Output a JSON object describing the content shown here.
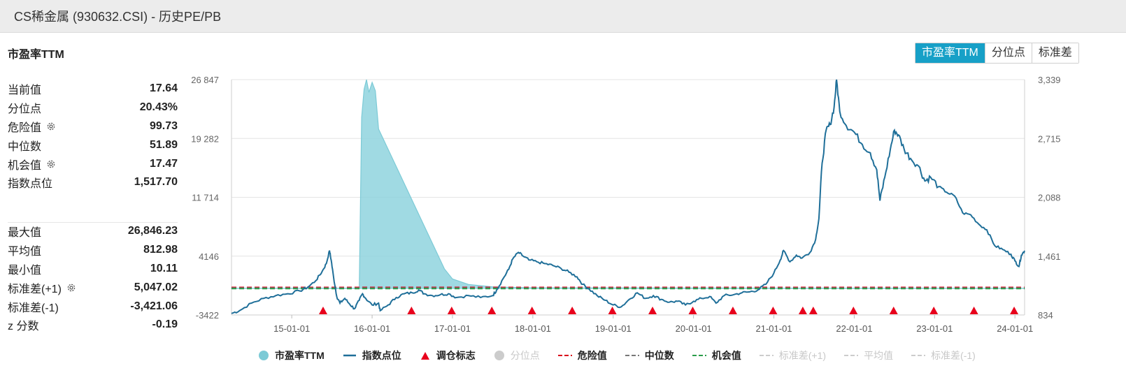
{
  "window": {
    "title": "CS稀金属 (930632.CSI) - 历史PE/PB"
  },
  "chart_heading": "市盈率TTM",
  "tabs": [
    {
      "label": "市盈率TTM",
      "active": true
    },
    {
      "label": "分位点",
      "active": false
    },
    {
      "label": "标准差",
      "active": false
    }
  ],
  "stats_top": [
    {
      "label": "当前值",
      "value": "17.64",
      "gear": false
    },
    {
      "label": "分位点",
      "value": "20.43%",
      "gear": false
    },
    {
      "label": "危险值",
      "value": "99.73",
      "gear": true
    },
    {
      "label": "中位数",
      "value": "51.89",
      "gear": false
    },
    {
      "label": "机会值",
      "value": "17.47",
      "gear": true
    },
    {
      "label": "指数点位",
      "value": "1,517.70",
      "gear": false
    }
  ],
  "stats_bottom": [
    {
      "label": "最大值",
      "value": "26,846.23",
      "gear": false
    },
    {
      "label": "平均值",
      "value": "812.98",
      "gear": false
    },
    {
      "label": "最小值",
      "value": "10.11",
      "gear": false
    },
    {
      "label": "标准差(+1)",
      "value": "5,047.02",
      "gear": true
    },
    {
      "label": "标准差(-1)",
      "value": "-3,421.06",
      "gear": false
    },
    {
      "label": "z 分数",
      "value": "-0.19",
      "gear": false
    }
  ],
  "colors": {
    "pe_fill": "#8fd3de",
    "pe_stroke": "#7ccad6",
    "index_line": "#1f6f99",
    "marker": "#e8001c",
    "danger": "#d9001b",
    "median": "#777777",
    "opportunity": "#2a9d4a",
    "disabled": "#cccccc",
    "tab_active": "#17a0c7"
  },
  "chart_data": {
    "type": "line",
    "x_ticks": [
      "15-01-01",
      "16-01-01",
      "17-01-01",
      "18-01-01",
      "19-01-01",
      "20-01-01",
      "21-01-01",
      "22-01-01",
      "23-01-01",
      "24-01-01"
    ],
    "x_range": [
      2014.25,
      2024.12
    ],
    "y_left_ticks": [
      "26 847",
      "19 282",
      "11 714",
      "4146",
      "-3422"
    ],
    "y_left_range": [
      -3422,
      26847
    ],
    "y_right_ticks": [
      "3,339",
      "2,715",
      "2,088",
      "1,461",
      "834"
    ],
    "y_right_range": [
      834,
      3339
    ],
    "opportunity_value": 17.47,
    "median_value": 51.89,
    "danger_value": 99.73,
    "pe_series": {
      "name": "市盈率TTM",
      "points": [
        [
          2014.25,
          20
        ],
        [
          2015.5,
          25
        ],
        [
          2015.84,
          30
        ],
        [
          2015.87,
          22000
        ],
        [
          2015.9,
          25600
        ],
        [
          2015.93,
          26847
        ],
        [
          2015.96,
          25200
        ],
        [
          2016.0,
          26500
        ],
        [
          2016.04,
          25400
        ],
        [
          2016.08,
          20500
        ],
        [
          2016.9,
          2500
        ],
        [
          2017.0,
          1200
        ],
        [
          2017.2,
          500
        ],
        [
          2017.5,
          200
        ],
        [
          2018.0,
          60
        ],
        [
          2020.0,
          40
        ],
        [
          2024.12,
          17.64
        ]
      ]
    },
    "index_series": {
      "name": "指数点位",
      "points": [
        [
          2014.25,
          850
        ],
        [
          2014.35,
          880
        ],
        [
          2014.5,
          960
        ],
        [
          2014.65,
          1010
        ],
        [
          2014.8,
          1040
        ],
        [
          2014.95,
          1060
        ],
        [
          2015.1,
          1090
        ],
        [
          2015.2,
          1130
        ],
        [
          2015.3,
          1200
        ],
        [
          2015.38,
          1300
        ],
        [
          2015.43,
          1380
        ],
        [
          2015.47,
          1520
        ],
        [
          2015.49,
          1420
        ],
        [
          2015.52,
          1240
        ],
        [
          2015.56,
          1030
        ],
        [
          2015.6,
          960
        ],
        [
          2015.66,
          1010
        ],
        [
          2015.72,
          950
        ],
        [
          2015.78,
          900
        ],
        [
          2015.84,
          990
        ],
        [
          2015.88,
          1060
        ],
        [
          2015.92,
          1010
        ],
        [
          2016.0,
          940
        ],
        [
          2016.08,
          960
        ],
        [
          2016.1,
          880
        ],
        [
          2016.2,
          940
        ],
        [
          2016.3,
          1020
        ],
        [
          2016.4,
          1060
        ],
        [
          2016.5,
          1070
        ],
        [
          2016.58,
          1100
        ],
        [
          2016.65,
          1060
        ],
        [
          2016.75,
          1040
        ],
        [
          2016.85,
          1050
        ],
        [
          2016.95,
          1060
        ],
        [
          2017.05,
          1020
        ],
        [
          2017.2,
          1040
        ],
        [
          2017.35,
          1020
        ],
        [
          2017.5,
          1040
        ],
        [
          2017.55,
          1100
        ],
        [
          2017.63,
          1220
        ],
        [
          2017.7,
          1320
        ],
        [
          2017.75,
          1430
        ],
        [
          2017.82,
          1500
        ],
        [
          2017.88,
          1460
        ],
        [
          2017.95,
          1420
        ],
        [
          2018.05,
          1400
        ],
        [
          2018.15,
          1380
        ],
        [
          2018.25,
          1360
        ],
        [
          2018.35,
          1330
        ],
        [
          2018.45,
          1290
        ],
        [
          2018.55,
          1240
        ],
        [
          2018.62,
          1160
        ],
        [
          2018.7,
          1110
        ],
        [
          2018.8,
          1040
        ],
        [
          2018.9,
          990
        ],
        [
          2019.0,
          940
        ],
        [
          2019.1,
          920
        ],
        [
          2019.2,
          1000
        ],
        [
          2019.3,
          1070
        ],
        [
          2019.4,
          1010
        ],
        [
          2019.5,
          1040
        ],
        [
          2019.6,
          1000
        ],
        [
          2019.7,
          970
        ],
        [
          2019.8,
          980
        ],
        [
          2019.9,
          940
        ],
        [
          2020.0,
          980
        ],
        [
          2020.1,
          1010
        ],
        [
          2020.2,
          1030
        ],
        [
          2020.28,
          960
        ],
        [
          2020.38,
          1040
        ],
        [
          2020.5,
          1050
        ],
        [
          2020.6,
          1070
        ],
        [
          2020.7,
          1080
        ],
        [
          2020.8,
          1100
        ],
        [
          2020.9,
          1160
        ],
        [
          2021.0,
          1280
        ],
        [
          2021.08,
          1420
        ],
        [
          2021.12,
          1520
        ],
        [
          2021.2,
          1400
        ],
        [
          2021.28,
          1470
        ],
        [
          2021.35,
          1440
        ],
        [
          2021.45,
          1500
        ],
        [
          2021.52,
          1640
        ],
        [
          2021.56,
          1860
        ],
        [
          2021.6,
          2450
        ],
        [
          2021.65,
          2800
        ],
        [
          2021.7,
          2860
        ],
        [
          2021.75,
          3050
        ],
        [
          2021.78,
          3339
        ],
        [
          2021.82,
          3000
        ],
        [
          2021.9,
          2850
        ],
        [
          2022.0,
          2780
        ],
        [
          2022.1,
          2650
        ],
        [
          2022.2,
          2560
        ],
        [
          2022.28,
          2380
        ],
        [
          2022.32,
          2050
        ],
        [
          2022.38,
          2300
        ],
        [
          2022.45,
          2600
        ],
        [
          2022.5,
          2800
        ],
        [
          2022.55,
          2750
        ],
        [
          2022.62,
          2600
        ],
        [
          2022.7,
          2500
        ],
        [
          2022.8,
          2420
        ],
        [
          2022.88,
          2260
        ],
        [
          2022.95,
          2300
        ],
        [
          2023.05,
          2200
        ],
        [
          2023.15,
          2140
        ],
        [
          2023.25,
          2100
        ],
        [
          2023.35,
          1920
        ],
        [
          2023.45,
          1900
        ],
        [
          2023.55,
          1800
        ],
        [
          2023.65,
          1740
        ],
        [
          2023.75,
          1570
        ],
        [
          2023.85,
          1530
        ],
        [
          2023.95,
          1480
        ],
        [
          2024.0,
          1410
        ],
        [
          2024.05,
          1350
        ],
        [
          2024.08,
          1470
        ],
        [
          2024.12,
          1517.7
        ]
      ]
    },
    "markers": {
      "name": "调仓标志",
      "x": [
        2015.39,
        2016.49,
        2016.99,
        2017.49,
        2017.99,
        2018.49,
        2018.99,
        2019.49,
        2019.99,
        2020.49,
        2020.99,
        2021.36,
        2021.49,
        2021.99,
        2022.49,
        2022.99,
        2023.49,
        2023.99
      ]
    },
    "legend": [
      {
        "label": "市盈率TTM",
        "shape": "circle",
        "color": "#7ccad6",
        "on": true
      },
      {
        "label": "指数点位",
        "shape": "line",
        "color": "#1f6f99",
        "on": true
      },
      {
        "label": "调仓标志",
        "shape": "triangle",
        "color": "#e8001c",
        "on": true
      },
      {
        "label": "分位点",
        "shape": "circle",
        "color": "#cccccc",
        "on": false
      },
      {
        "label": "危险值",
        "shape": "dash",
        "color": "#d9001b",
        "on": true
      },
      {
        "label": "中位数",
        "shape": "dash",
        "color": "#777777",
        "on": true
      },
      {
        "label": "机会值",
        "shape": "dash",
        "color": "#2a9d4a",
        "on": true
      },
      {
        "label": "标准差(+1)",
        "shape": "dash",
        "color": "#cccccc",
        "on": false
      },
      {
        "label": "平均值",
        "shape": "dash",
        "color": "#cccccc",
        "on": false
      },
      {
        "label": "标准差(-1)",
        "shape": "dash",
        "color": "#cccccc",
        "on": false
      }
    ]
  }
}
